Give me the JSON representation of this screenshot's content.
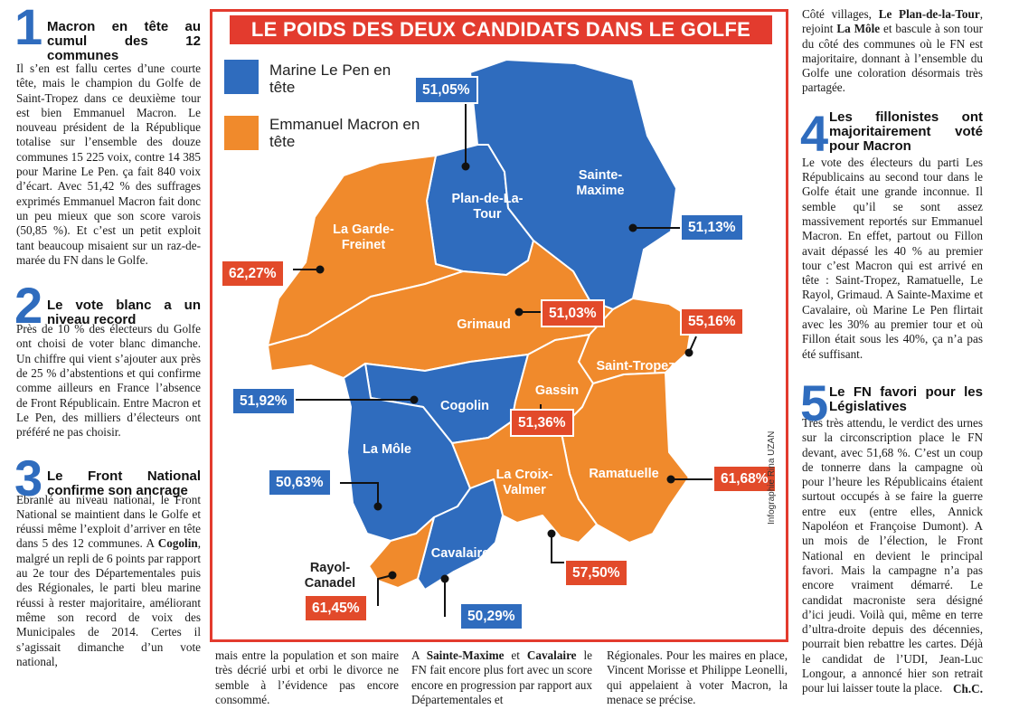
{
  "map": {
    "title": "LE POIDS DES DEUX CANDIDATS DANS LE GOLFE",
    "legend": [
      {
        "label": "Marine Le Pen en tête",
        "color": "#2f6cbe"
      },
      {
        "label": "Emmanuel Macron en tête",
        "color": "#f08a2c"
      }
    ],
    "communes": [
      {
        "name": "Plan-de-La-Tour",
        "leader": "Le Pen",
        "pct": "51,05%"
      },
      {
        "name": "Sainte-Maxime",
        "leader": "Le Pen",
        "pct": "51,13%"
      },
      {
        "name": "La Garde-Freinet",
        "leader": "Macron",
        "pct": "62,27%"
      },
      {
        "name": "Grimaud",
        "leader": "Macron",
        "pct": "51,03%"
      },
      {
        "name": "Saint-Tropez",
        "leader": "Macron",
        "pct": "55,16%"
      },
      {
        "name": "Cogolin",
        "leader": "Le Pen",
        "pct": "51,92%"
      },
      {
        "name": "Gassin",
        "leader": "Macron",
        "pct": "51,36%"
      },
      {
        "name": "La Môle",
        "leader": "Le Pen",
        "pct": "50,63%"
      },
      {
        "name": "Ramatuelle",
        "leader": "Macron",
        "pct": "61,68%"
      },
      {
        "name": "La Croix-Valmer",
        "leader": "Macron",
        "pct": "57,50%"
      },
      {
        "name": "Cavalaire",
        "leader": "Le Pen",
        "pct": "50,29%"
      },
      {
        "name": "Rayol-Canadel",
        "leader": "Macron",
        "pct": "61,45%"
      }
    ],
    "credit": "Infographie Rina UZAN"
  },
  "s1": {
    "num": "1",
    "title": "Macron en tête au cumul des 12 communes",
    "body": "Il s’en est fallu certes d’une courte tête, mais le champion du Golfe de Saint-Tropez dans ce deuxième tour est bien Emmanuel Macron. Le nouveau président de la République totalise sur l’ensemble des douze communes 15 225 voix, contre 14 385 pour Marine Le Pen. ça fait 840 voix d’écart. Avec 51,42 % des suffrages exprimés Emmanuel Macron fait donc un peu mieux que son score varois (50,85 %). Et c’est un petit exploit tant beaucoup misaient sur un raz-de-marée du FN dans le Golfe."
  },
  "s2": {
    "num": "2",
    "title": "Le vote blanc a un niveau record",
    "body": "Près de 10 % des électeurs du Golfe ont choisi de voter blanc dimanche. Un chiffre qui vient s’ajouter aux près de 25 % d’abstentions et qui confirme comme ailleurs en France l’absence de Front Républicain. Entre Macron et Le Pen, des milliers d’électeurs ont préféré ne pas choisir."
  },
  "s3": {
    "num": "3",
    "title": "Le Front National confirme son ancrage",
    "body1": "Ebranlé au niveau national, le Front National se maintient dans le Golfe et réussi même l’exploit d’arriver en tête dans 5 des 12 communes. A",
    "cogolin": "Cogolin",
    "body2": ", malgré un repli de 6 points par rapport au 2e tour des Départementales puis des Régionales, le parti bleu marine réussi à rester majoritaire, améliorant même son record de voix des Municipales de 2014. Certes il s’agissait dimanche d’un vote national,",
    "cont_a": "mais entre la population et son maire très décrié urbi et orbi le divorce ne semble à l’évidence pas encore consommé.",
    "cont_b1": "A",
    "cont_b_sm": "Sainte-Maxime",
    "cont_b2": "et",
    "cont_b_cav": "Cavalaire",
    "cont_b3": "le FN fait encore plus fort avec un score encore en progression par rapport aux Départementales et",
    "cont_c": "Régionales. Pour les maires en place, Vincent Morisse et Philippe Leonelli, qui appelaient à voter Macron, la menace se précise."
  },
  "right_top": {
    "t1": "Côté villages,",
    "plan": "Le Plan-de-la-Tour",
    "t2": ", rejoint",
    "mole": "La Môle",
    "t3": "et bascule à son tour du côté des communes où le FN est majoritaire, donnant à l’ensemble du Golfe une coloration désormais très partagée."
  },
  "s4": {
    "num": "4",
    "title": "Les fillonistes ont majoritairement voté pour Macron",
    "body": "Le vote des électeurs du parti Les Républicains au second tour dans le Golfe était une grande inconnue. Il semble qu’il se sont assez massivement reportés sur Emmanuel Macron. En effet, partout ou Fillon avait dépassé les 40 % au premier tour c’est Macron qui est arrivé en tête : Saint-Tropez, Ramatuelle, Le Rayol, Grimaud. A Sainte-Maxime et Cavalaire, où Marine Le Pen flirtait avec les 30% au premier tour et où Fillon était sous les 40%, ça n’a pas été suffisant."
  },
  "s5": {
    "num": "5",
    "title": "Le FN favori pour les Législatives",
    "body": "Très très attendu, le verdict des urnes sur la circonscription place le FN devant, avec 51,68 %. C’est un coup de tonnerre dans la campagne où pour l’heure les Républicains étaient surtout occupés à se faire la guerre entre eux (entre elles, Annick Napoléon et Françoise Dumont). A un mois de l’élection, le Front National en devient le principal favori. Mais la campagne n’a pas encore vraiment démarré. Le candidat macroniste sera désigné d’ici jeudi. Voilà qui, même en terre d’ultra-droite depuis des décennies, pourrait bien rebattre les cartes. Déjà le candidat de l’UDI, Jean-Luc Longour, a annoncé hier son retrait pour lui laisser toute la place.",
    "signature": "Ch.C."
  }
}
